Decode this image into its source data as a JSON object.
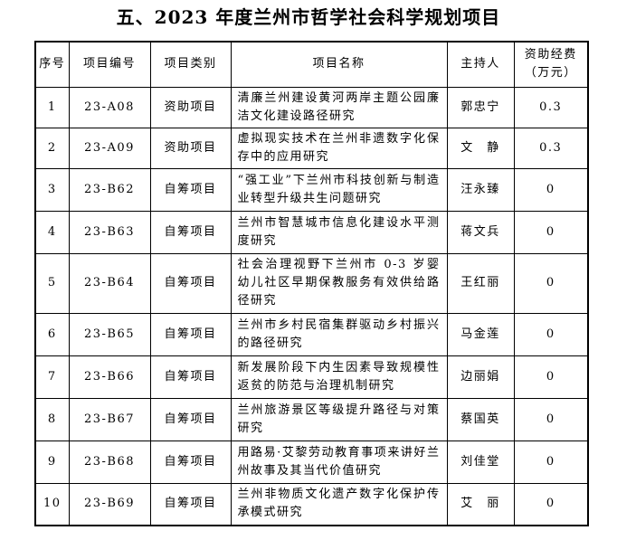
{
  "title": "五、2023 年度兰州市哲学社会科学规划项目",
  "table": {
    "headers": [
      "序号",
      "项目编号",
      "项目类别",
      "项目名称",
      "主持人",
      "资助经费（万元）"
    ],
    "rows": [
      [
        "1",
        "23-A08",
        "资助项目",
        "清廉兰州建设黄河两岸主题公园廉洁文化建设路径研究",
        "郭忠宁",
        "0.3"
      ],
      [
        "2",
        "23-A09",
        "资助项目",
        "虚拟现实技术在兰州非遗数字化保存中的应用研究",
        "文　静",
        "0.3"
      ],
      [
        "3",
        "23-B62",
        "自筹项目",
        "“强工业”下兰州市科技创新与制造业转型升级共生问题研究",
        "汪永臻",
        "0"
      ],
      [
        "4",
        "23-B63",
        "自筹项目",
        "兰州市智慧城市信息化建设水平测度研究",
        "蒋文兵",
        "0"
      ],
      [
        "5",
        "23-B64",
        "自筹项目",
        "社会治理视野下兰州市 0-3 岁婴幼儿社区早期保教服务有效供给路径研究",
        "王红丽",
        "0"
      ],
      [
        "6",
        "23-B65",
        "自筹项目",
        "兰州市乡村民宿集群驱动乡村振兴的路径研究",
        "马金莲",
        "0"
      ],
      [
        "7",
        "23-B66",
        "自筹项目",
        "新发展阶段下内生因素导致规模性返贫的防范与治理机制研究",
        "边丽娟",
        "0"
      ],
      [
        "8",
        "23-B67",
        "自筹项目",
        "兰州旅游景区等级提升路径与对策研究",
        "蔡国英",
        "0"
      ],
      [
        "9",
        "23-B68",
        "自筹项目",
        "用路易·艾黎劳动教育事项来讲好兰州故事及其当代价值研究",
        "刘佳堂",
        "0"
      ],
      [
        "10",
        "23-B69",
        "自筹项目",
        "兰州非物质文化遗产数字化保护传承模式研究",
        "艾　丽",
        "0"
      ]
    ]
  }
}
